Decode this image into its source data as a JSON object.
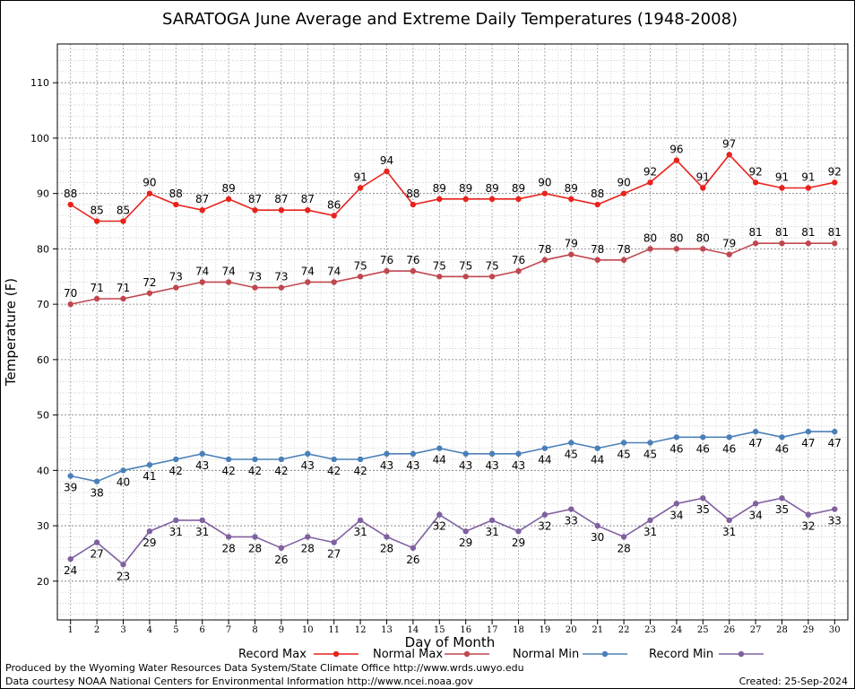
{
  "chart_data": {
    "type": "line",
    "title": "SARATOGA June Average and Extreme Daily Temperatures (1948-2008)",
    "xlabel": "Day of Month",
    "ylabel": "Temperature (F)",
    "x": [
      1,
      2,
      3,
      4,
      5,
      6,
      7,
      8,
      9,
      10,
      11,
      12,
      13,
      14,
      15,
      16,
      17,
      18,
      19,
      20,
      21,
      22,
      23,
      24,
      25,
      26,
      27,
      28,
      29,
      30
    ],
    "xlim": [
      0.5,
      30.5
    ],
    "ylim": [
      13,
      117
    ],
    "yticks": [
      20,
      30,
      40,
      50,
      60,
      70,
      80,
      90,
      100,
      110
    ],
    "grid": true,
    "legend_position": "bottom",
    "series": [
      {
        "name": "Record Max",
        "color": "#e8221c",
        "label_pos": "above",
        "values": [
          88,
          85,
          85,
          90,
          88,
          87,
          89,
          87,
          87,
          87,
          86,
          91,
          94,
          88,
          89,
          89,
          89,
          89,
          90,
          89,
          88,
          90,
          92,
          96,
          91,
          97,
          92,
          91,
          91,
          92
        ]
      },
      {
        "name": "Normal Max",
        "color": "#c0474f",
        "label_pos": "above",
        "values": [
          70,
          71,
          71,
          72,
          73,
          74,
          74,
          73,
          73,
          74,
          74,
          75,
          76,
          76,
          75,
          75,
          75,
          76,
          78,
          79,
          78,
          78,
          80,
          80,
          80,
          79,
          81,
          81,
          81,
          81
        ]
      },
      {
        "name": "Normal Min",
        "color": "#4a80b8",
        "label_pos": "below",
        "values": [
          39,
          38,
          40,
          41,
          42,
          43,
          42,
          42,
          42,
          43,
          42,
          42,
          43,
          43,
          44,
          43,
          43,
          43,
          44,
          45,
          44,
          45,
          45,
          46,
          46,
          46,
          47,
          46,
          47,
          47
        ]
      },
      {
        "name": "Record Min",
        "color": "#8060a0",
        "label_pos": "below",
        "values": [
          24,
          27,
          23,
          29,
          31,
          31,
          28,
          28,
          26,
          28,
          27,
          31,
          28,
          26,
          32,
          29,
          31,
          29,
          32,
          33,
          30,
          28,
          31,
          34,
          35,
          31,
          34,
          35,
          32,
          33
        ]
      }
    ]
  },
  "footer": {
    "line1": "Produced by the Wyoming Water Resources Data System/State Climate Office http://www.wrds.uwyo.edu",
    "line2": "Data courtesy NOAA National Centers for Environmental Information http://www.ncei.noaa.gov",
    "created": "Created:  25-Sep-2024"
  }
}
